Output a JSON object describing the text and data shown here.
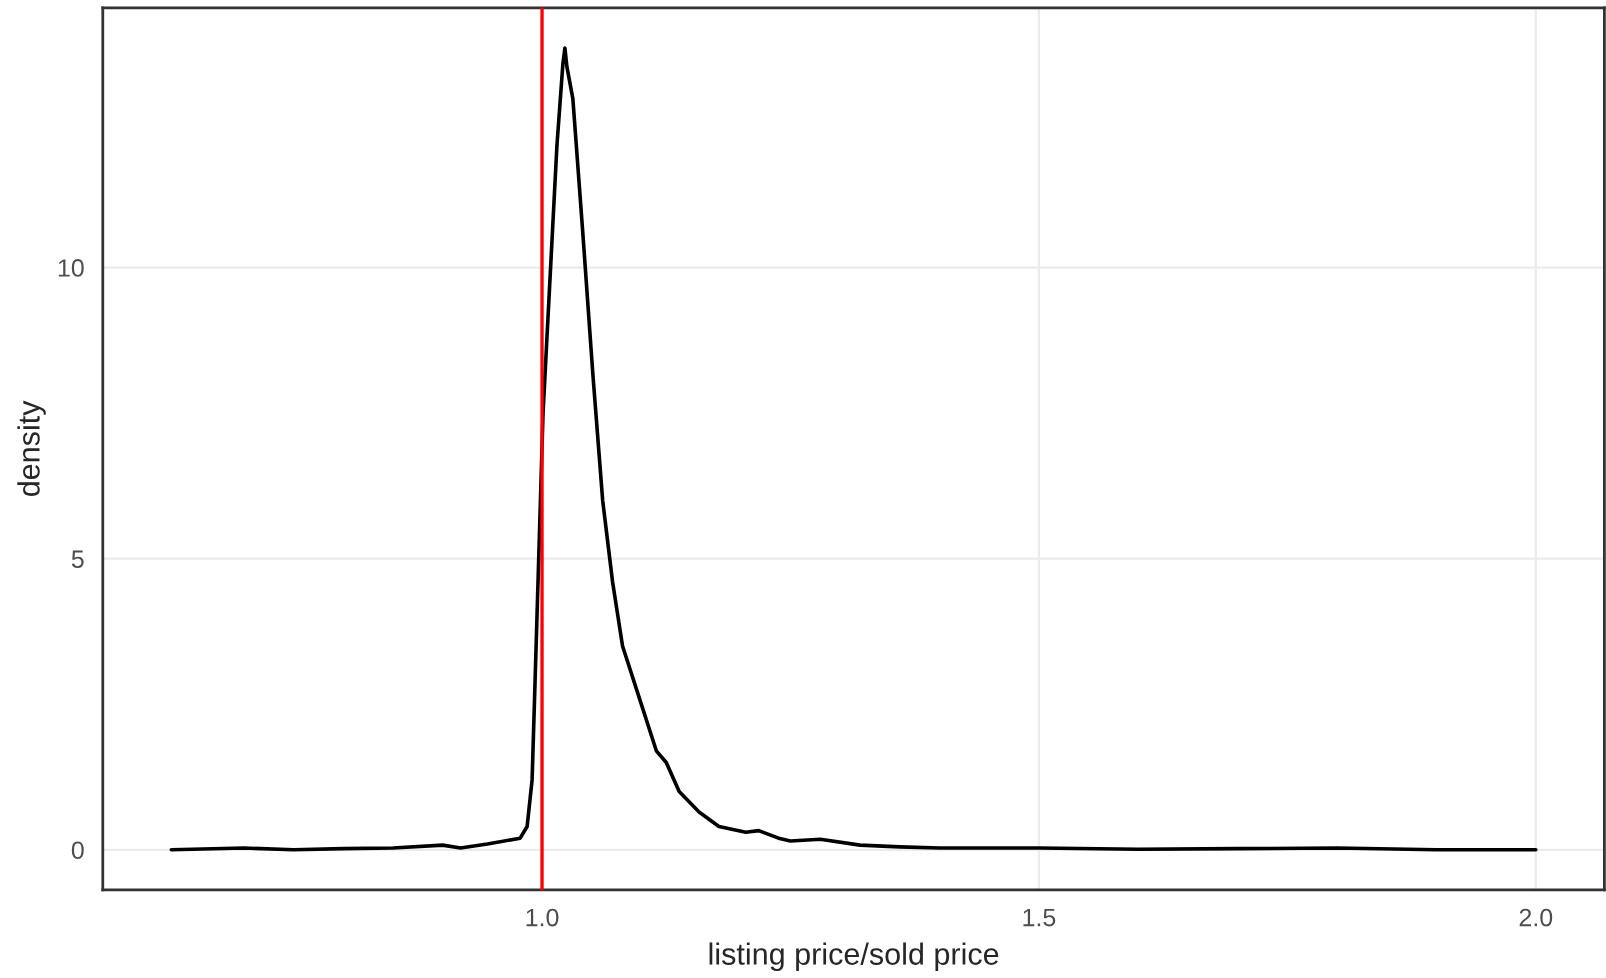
{
  "chart_data": {
    "type": "line",
    "xlabel": "listing price/sold price",
    "ylabel": "density",
    "x": [
      0.627,
      0.7,
      0.75,
      0.8,
      0.85,
      0.9,
      0.918,
      0.945,
      0.978,
      0.985,
      0.99,
      0.993,
      0.997,
      1.001,
      1.008,
      1.015,
      1.021,
      1.023,
      1.025,
      1.031,
      1.041,
      1.051,
      1.061,
      1.071,
      1.081,
      1.098,
      1.115,
      1.125,
      1.138,
      1.158,
      1.178,
      1.205,
      1.218,
      1.238,
      1.25,
      1.28,
      1.32,
      1.36,
      1.4,
      1.5,
      1.6,
      1.7,
      1.8,
      1.9,
      2.0
    ],
    "series": [
      {
        "color": "#000000",
        "values": [
          0,
          0.03,
          0,
          0.02,
          0.03,
          0.08,
          0.03,
          0.1,
          0.2,
          0.4,
          1.2,
          2.9,
          5.2,
          7.5,
          9.8,
          12.1,
          13.5,
          13.77,
          13.45,
          12.9,
          10.6,
          8.2,
          6.0,
          4.6,
          3.5,
          2.6,
          1.7,
          1.5,
          1.0,
          0.65,
          0.4,
          0.3,
          0.33,
          0.2,
          0.15,
          0.18,
          0.08,
          0.05,
          0.03,
          0.03,
          0.01,
          0.02,
          0.03,
          0,
          0
        ]
      }
    ],
    "xlim": [
      0.558,
      2.069
    ],
    "ylim": [
      -0.69,
      14.46
    ],
    "xticks": [
      {
        "value": 1.0,
        "label": "1.0"
      },
      {
        "value": 1.5,
        "label": "1.5"
      },
      {
        "value": 2.0,
        "label": "2.0"
      }
    ],
    "yticks": [
      0,
      5,
      10
    ],
    "ref_lines": [
      {
        "axis": "x",
        "value": 1.0,
        "color": "#ff0000"
      }
    ],
    "grid": true
  }
}
